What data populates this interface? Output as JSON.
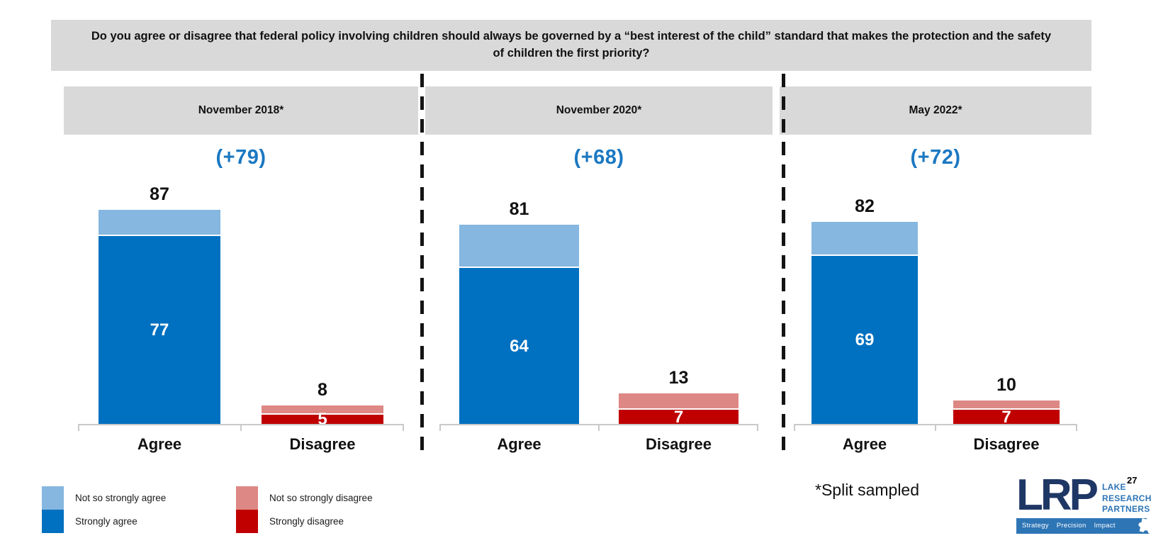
{
  "question_header": "Do you agree or disagree that federal policy involving children should always be governed by a “best interest of the child” standard that makes the protection and the safety of children the first priority?",
  "chart_data": {
    "type": "bar",
    "subtype": "stacked-grouped-small-multiples",
    "unit": "percent",
    "ylim": [
      0,
      100
    ],
    "grid": false,
    "categories": [
      "Agree",
      "Disagree"
    ],
    "legend": [
      {
        "label": "Not so strongly agree",
        "color": "#85B7E0"
      },
      {
        "label": "Strongly agree",
        "color": "#0070C0"
      },
      {
        "label": "Not so strongly disagree",
        "color": "#DD8884"
      },
      {
        "label": "Strongly disagree",
        "color": "#C00000"
      }
    ],
    "legend_position": "bottom-left",
    "panels": [
      {
        "label": "November 2018*",
        "net_label": "(+79)",
        "net_value": 79,
        "agree": {
          "total": 87,
          "strongly_agree": 77,
          "not_so_strongly_agree": 10
        },
        "disagree": {
          "total": 8,
          "strongly_disagree": 5,
          "not_so_strongly_disagree": 3
        }
      },
      {
        "label": "November 2020*",
        "net_label": "(+68)",
        "net_value": 68,
        "agree": {
          "total": 81,
          "strongly_agree": 64,
          "not_so_strongly_agree": 17
        },
        "disagree": {
          "total": 13,
          "strongly_disagree": 7,
          "not_so_strongly_disagree": 6
        }
      },
      {
        "label": "May 2022*",
        "net_label": "(+72)",
        "net_value": 72,
        "agree": {
          "total": 82,
          "strongly_agree": 69,
          "not_so_strongly_agree": 13
        },
        "disagree": {
          "total": 10,
          "strongly_disagree": 7,
          "not_so_strongly_disagree": 3
        }
      }
    ],
    "colors": {
      "net_label": "#1B78C2",
      "band_bg": "#D9D9D9"
    }
  },
  "footnote": "*Split sampled",
  "page_number": "27",
  "logo": {
    "abbr": "LRP",
    "name_line1": "LAKE",
    "name_line2": "RESEARCH",
    "name_line3": "PARTNERS",
    "tagline1": "Strategy",
    "tagline2": "Precision",
    "tagline3": "Impact"
  }
}
